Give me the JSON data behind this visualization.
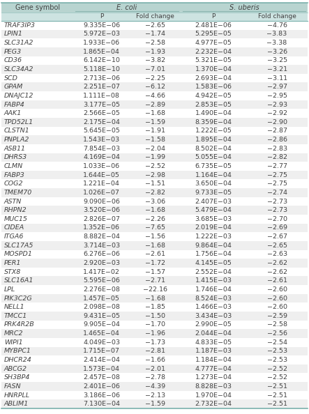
{
  "header_row1": [
    "Gene symbol",
    "E. coli",
    "S. uberis"
  ],
  "header_row2": [
    "",
    "P",
    "Fold change",
    "P",
    "Fold change"
  ],
  "rows": [
    [
      "TRAF3IP3",
      "9.335E−06",
      "−2.65",
      "2.481E−06",
      "−4.76"
    ],
    [
      "LPIN1",
      "5.972E−03",
      "−1.74",
      "5.295E−05",
      "−3.83"
    ],
    [
      "SLC31A2",
      "1.933E−06",
      "−2.58",
      "4.977E−05",
      "−3.38"
    ],
    [
      "PEG3",
      "1.865E−04",
      "−1.93",
      "2.232E−04",
      "−3.26"
    ],
    [
      "CD36",
      "6.142E−10",
      "−3.82",
      "5.321E−05",
      "−3.25"
    ],
    [
      "SLC34A2",
      "5.118E−10",
      "−7.01",
      "1.370E−04",
      "−3.21"
    ],
    [
      "SCD",
      "2.713E−06",
      "−2.25",
      "2.693E−04",
      "−3.11"
    ],
    [
      "GPAM",
      "2.251E−07",
      "−6.12",
      "1.583E−06",
      "−2.97"
    ],
    [
      "DNAJC12",
      "1.111E−08",
      "−4.66",
      "4.942E−05",
      "−2.95"
    ],
    [
      "FABP4",
      "3.177E−05",
      "−2.89",
      "2.853E−05",
      "−2.93"
    ],
    [
      "AAK1",
      "2.566E−05",
      "−1.68",
      "1.490E−04",
      "−2.92"
    ],
    [
      "TPD52L1",
      "2.175E−04",
      "−1.59",
      "8.359E−04",
      "−2.90"
    ],
    [
      "CLSTN1",
      "5.645E−05",
      "−1.91",
      "1.222E−05",
      "−2.87"
    ],
    [
      "PNPLA2",
      "1.543E−03",
      "−1.58",
      "1.895E−04",
      "−2.86"
    ],
    [
      "ASB11",
      "7.854E−03",
      "−2.04",
      "8.502E−04",
      "−2.83"
    ],
    [
      "DHRS3",
      "4.169E−04",
      "−1.99",
      "5.055E−04",
      "−2.82"
    ],
    [
      "CLMN",
      "1.033E−06",
      "−2.52",
      "6.735E−05",
      "−2.77"
    ],
    [
      "FABP3",
      "1.644E−05",
      "−2.98",
      "1.164E−04",
      "−2.75"
    ],
    [
      "COG2",
      "1.221E−04",
      "−1.51",
      "3.650E−04",
      "−2.75"
    ],
    [
      "TMEM70",
      "1.026E−07",
      "−2.82",
      "9.733E−05",
      "−2.74"
    ],
    [
      "ASTN",
      "9.090E−06",
      "−3.06",
      "2.407E−03",
      "−2.73"
    ],
    [
      "RHPN2",
      "3.520E−06",
      "−1.68",
      "5.479E−04",
      "−2.73"
    ],
    [
      "MUC15",
      "2.826E−07",
      "−2.26",
      "3.685E−03",
      "−2.70"
    ],
    [
      "CIDEA",
      "1.352E−06",
      "−7.65",
      "2.019E−04",
      "−2.69"
    ],
    [
      "ITGA6",
      "8.882E−04",
      "−1.56",
      "1.222E−03",
      "−2.67"
    ],
    [
      "SLC17A5",
      "3.714E−03",
      "−1.68",
      "9.864E−04",
      "−2.65"
    ],
    [
      "MOSPD1",
      "6.276E−06",
      "−2.61",
      "1.756E−04",
      "−2.63"
    ],
    [
      "PER1",
      "2.920E−03",
      "−1.72",
      "4.145E−05",
      "−2.62"
    ],
    [
      "STX8",
      "1.417E−02",
      "−1.57",
      "2.552E−04",
      "−2.62"
    ],
    [
      "SLC16A1",
      "5.595E−06",
      "−2.71",
      "1.415E−03",
      "−2.61"
    ],
    [
      "LPL",
      "2.276E−08",
      "−22.16",
      "1.746E−04",
      "−2.60"
    ],
    [
      "PIK3C2G",
      "1.457E−05",
      "−1.68",
      "8.524E−03",
      "−2.60"
    ],
    [
      "NELL1",
      "2.098E−08",
      "−1.85",
      "1.466E−03",
      "−2.60"
    ],
    [
      "TMCC1",
      "9.431E−05",
      "−1.50",
      "3.434E−03",
      "−2.59"
    ],
    [
      "PRK4R2B",
      "9.905E−04",
      "−1.70",
      "2.990E−05",
      "−2.58"
    ],
    [
      "MRC2",
      "1.465E−04",
      "−1.96",
      "2.044E−04",
      "−2.56"
    ],
    [
      "WIPI1",
      "4.049E−03",
      "−1.73",
      "4.833E−05",
      "−2.54"
    ],
    [
      "MYBPC1",
      "1.715E−07",
      "−2.81",
      "1.187E−03",
      "−2.53"
    ],
    [
      "DHCR24",
      "2.414E−04",
      "−1.66",
      "1.184E−04",
      "−2.53"
    ],
    [
      "ABCG2",
      "1.573E−04",
      "−2.01",
      "4.777E−04",
      "−2.52"
    ],
    [
      "SH3BP4",
      "2.457E−08",
      "−2.78",
      "1.273E−04",
      "−2.52"
    ],
    [
      "FASN",
      "2.401E−06",
      "−4.39",
      "8.828E−03",
      "−2.51"
    ],
    [
      "HNRPLL",
      "3.186E−06",
      "−2.13",
      "1.970E−04",
      "−2.51"
    ],
    [
      "ABLIM1",
      "7.130E−04",
      "−1.59",
      "2.732E−04",
      "−2.51"
    ]
  ],
  "header_bg": "#b8d4d0",
  "subheader_bg": "#cde3e1",
  "row_bg_odd": "#ffffff",
  "row_bg_even": "#efefef",
  "text_color": "#404040",
  "font_size": 6.8,
  "header_font_size": 7.0
}
